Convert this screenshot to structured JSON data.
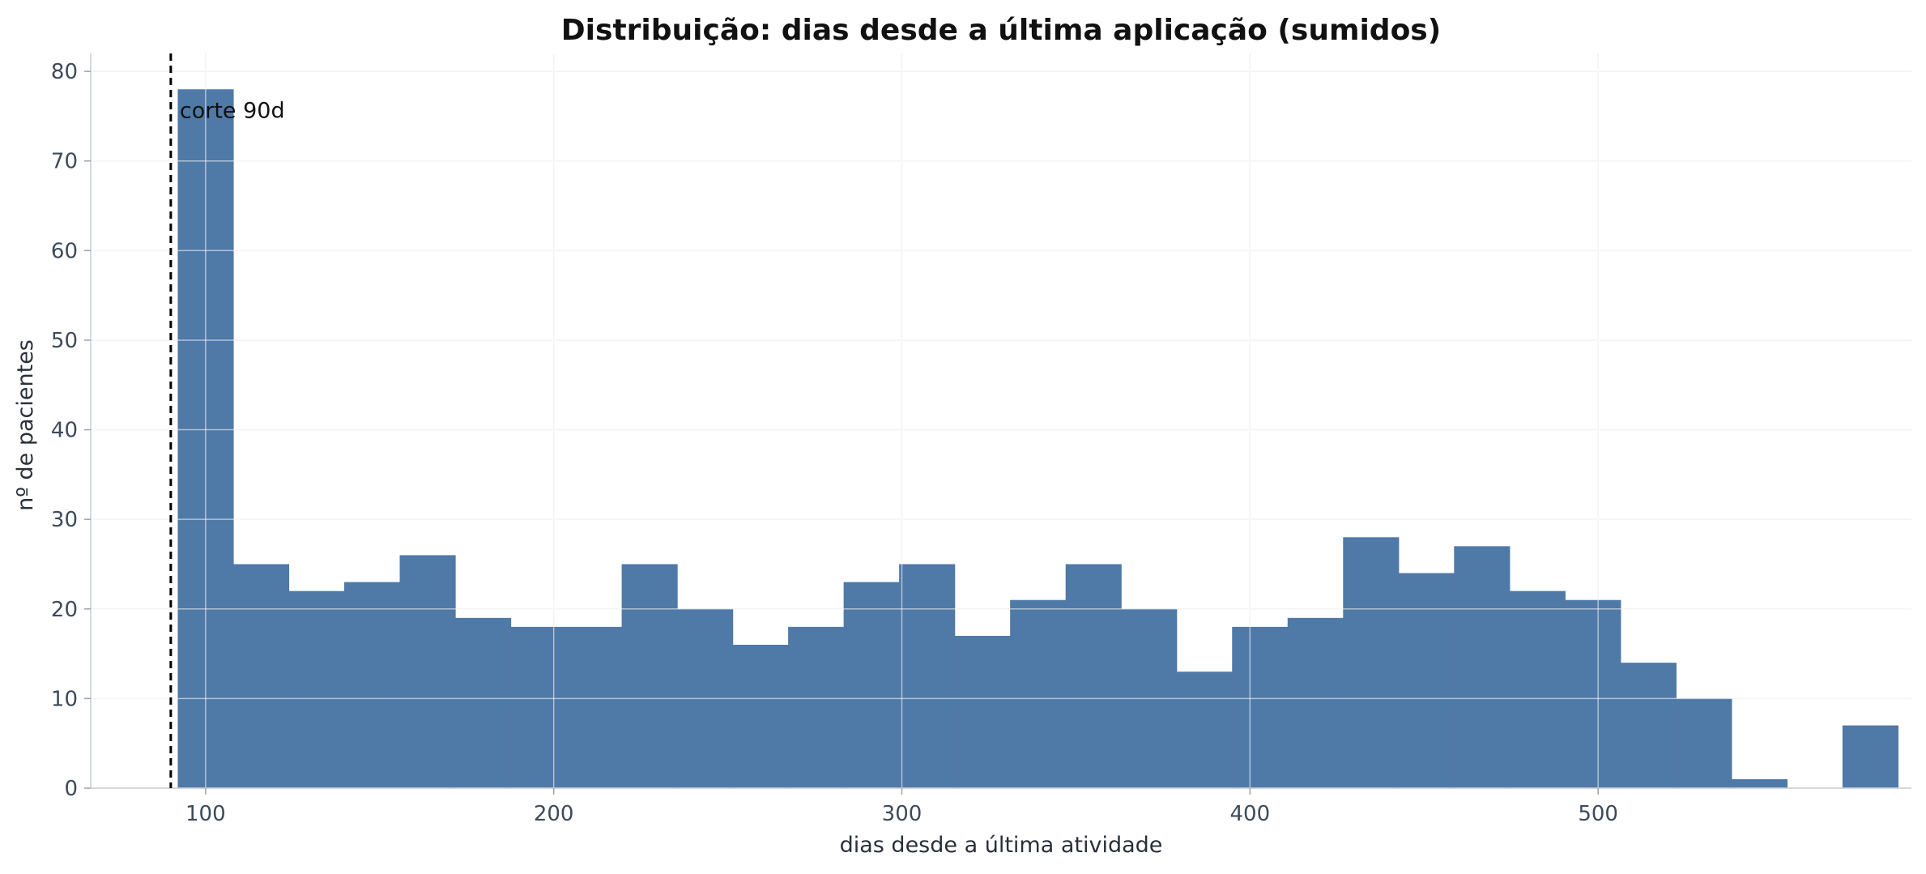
{
  "chart_data": {
    "type": "bar",
    "title": "Distribuição: dias desde a última aplicação (sumidos)",
    "xlabel": "dias desde a última atividade",
    "ylabel": "nº de pacientes",
    "xlim": [
      67,
      590
    ],
    "ylim": [
      0,
      82
    ],
    "x_ticks": [
      100,
      200,
      300,
      400,
      500
    ],
    "y_ticks": [
      0,
      10,
      20,
      30,
      40,
      50,
      60,
      70,
      80
    ],
    "grid": true,
    "bar_color": "#4f79a7",
    "bin_width": 15.94,
    "bin_start": 92,
    "values": [
      78,
      25,
      22,
      23,
      26,
      19,
      18,
      18,
      25,
      20,
      16,
      18,
      23,
      25,
      17,
      21,
      25,
      20,
      13,
      18,
      19,
      28,
      24,
      27,
      22,
      21,
      14,
      10,
      1,
      0,
      7
    ],
    "cutoff": {
      "x": 90,
      "label": "corte 90d",
      "color": "#000000"
    }
  }
}
